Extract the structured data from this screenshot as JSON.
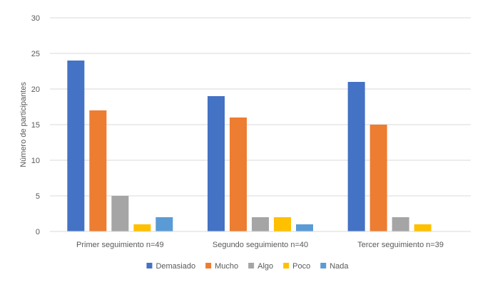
{
  "chart_data": {
    "type": "bar",
    "title": "",
    "xlabel": "",
    "ylabel": "Número de participantes",
    "ylim": [
      0,
      30
    ],
    "yticks": [
      0,
      5,
      10,
      15,
      20,
      25,
      30
    ],
    "grid": true,
    "legend_position": "bottom",
    "categories": [
      "Primer seguimiento n=49",
      "Segundo seguimiento n=40",
      "Tercer seguimiento n=39"
    ],
    "series": [
      {
        "name": "Demasiado",
        "color": "#4472C4",
        "values": [
          24,
          19,
          21
        ]
      },
      {
        "name": "Mucho",
        "color": "#ED7D31",
        "values": [
          17,
          16,
          15
        ]
      },
      {
        "name": "Algo",
        "color": "#A5A5A5",
        "values": [
          5,
          2,
          2
        ]
      },
      {
        "name": "Poco",
        "color": "#FFC000",
        "values": [
          1,
          2,
          1
        ]
      },
      {
        "name": "Nada",
        "color": "#5B9BD5",
        "values": [
          2,
          1,
          0
        ]
      }
    ]
  }
}
